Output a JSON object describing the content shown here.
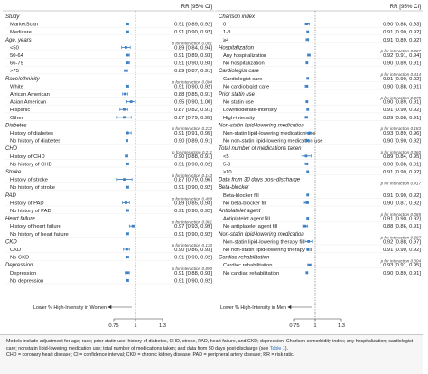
{
  "panels": [
    {
      "header": "RR [95% CI]",
      "x_axis_label": "Lower % High-Intensity in Women",
      "rows": [
        {
          "k": "h",
          "label": "Study"
        },
        {
          "k": "d",
          "label": "MarketScan",
          "rr": "0.91 [0.89, 0.92]",
          "e": 0.91,
          "lo": 0.89,
          "hi": 0.92
        },
        {
          "k": "d",
          "label": "Medicare",
          "rr": "0.91 [0.90, 0.92]",
          "e": 0.91,
          "lo": 0.9,
          "hi": 0.92
        },
        {
          "k": "hp",
          "label": "Age, years",
          "p": "p for interaction 0.001"
        },
        {
          "k": "d",
          "label": "<50",
          "rr": "0.89 [0.84, 0.94]",
          "e": 0.89,
          "lo": 0.84,
          "hi": 0.94
        },
        {
          "k": "d",
          "label": "50-64",
          "rr": "0.91 [0.89, 0.93]",
          "e": 0.91,
          "lo": 0.89,
          "hi": 0.93
        },
        {
          "k": "d",
          "label": "66-75",
          "rr": "0.91 [0.90, 0.93]",
          "e": 0.91,
          "lo": 0.9,
          "hi": 0.93
        },
        {
          "k": "d",
          "label": ">75",
          "rr": "0.89 [0.87, 0.91]",
          "e": 0.89,
          "lo": 0.87,
          "hi": 0.91
        },
        {
          "k": "hp",
          "label": "Race/ethnicity",
          "p": "p for interaction 0.004"
        },
        {
          "k": "d",
          "label": "White",
          "rr": "0.91 [0.90, 0.92]",
          "e": 0.91,
          "lo": 0.9,
          "hi": 0.92
        },
        {
          "k": "d",
          "label": "African American",
          "rr": "0.88 [0.85, 0.91]",
          "e": 0.88,
          "lo": 0.85,
          "hi": 0.91
        },
        {
          "k": "d",
          "label": "Asian American",
          "rr": "0.95 [0.90, 1.00]",
          "e": 0.95,
          "lo": 0.9,
          "hi": 1.0
        },
        {
          "k": "d",
          "label": "Hispanic",
          "rr": "0.87 [0.82, 0.91]",
          "e": 0.87,
          "lo": 0.82,
          "hi": 0.91
        },
        {
          "k": "d",
          "label": "Other",
          "rr": "0.87 [0.79, 0.95]",
          "e": 0.87,
          "lo": 0.79,
          "hi": 0.95
        },
        {
          "k": "hp",
          "label": "Diabetes",
          "p": "p for interaction 0.232"
        },
        {
          "k": "d",
          "label": "History of diabetes",
          "rr": "0.91 [0.91, 0.95]",
          "e": 0.91,
          "lo": 0.91,
          "hi": 0.95
        },
        {
          "k": "d",
          "label": "No history of diabetes",
          "rr": "0.90 [0.89, 0.91]",
          "e": 0.9,
          "lo": 0.89,
          "hi": 0.91
        },
        {
          "k": "hp",
          "label": "CHD",
          "p": "p for interaction 0.211"
        },
        {
          "k": "d",
          "label": "History of CHD",
          "rr": "0.90 [0.88, 0.91]",
          "e": 0.9,
          "lo": 0.88,
          "hi": 0.91
        },
        {
          "k": "d",
          "label": "No history of CHD",
          "rr": "0.91 [0.90, 0.92]",
          "e": 0.91,
          "lo": 0.9,
          "hi": 0.92
        },
        {
          "k": "hp",
          "label": "Stroke",
          "p": "p for interaction 0.143"
        },
        {
          "k": "d",
          "label": "History of stroke",
          "rr": "0.87 [0.79, 0.96]",
          "e": 0.87,
          "lo": 0.79,
          "hi": 0.96
        },
        {
          "k": "d",
          "label": "No history of stroke",
          "rr": "0.91 [0.90, 0.92]",
          "e": 0.91,
          "lo": 0.9,
          "hi": 0.92
        },
        {
          "k": "hp",
          "label": "PAD",
          "p": "p for interaction 0.499"
        },
        {
          "k": "d",
          "label": "History of PAD",
          "rr": "0.89 [0.85, 0.93]",
          "e": 0.89,
          "lo": 0.85,
          "hi": 0.93
        },
        {
          "k": "d",
          "label": "No history of PAD",
          "rr": "0.91 [0.90, 0.92]",
          "e": 0.91,
          "lo": 0.9,
          "hi": 0.92
        },
        {
          "k": "hp",
          "label": "Heart failure",
          "p": "p for interaction 0.981"
        },
        {
          "k": "d",
          "label": "History of heart failure",
          "rr": "0.97 [0.93, 0.99]",
          "e": 0.97,
          "lo": 0.93,
          "hi": 0.99
        },
        {
          "k": "d",
          "label": "No history of heart failure",
          "rr": "0.91 [0.90, 0.92]",
          "e": 0.91,
          "lo": 0.9,
          "hi": 0.92
        },
        {
          "k": "hp",
          "label": "CKD",
          "p": "p for interaction 0.130"
        },
        {
          "k": "d",
          "label": "CKD",
          "rr": "0.90 [0.86, 0.93]",
          "e": 0.9,
          "lo": 0.86,
          "hi": 0.93
        },
        {
          "k": "d",
          "label": "No CKD",
          "rr": "0.91 [0.90, 0.92]",
          "e": 0.91,
          "lo": 0.9,
          "hi": 0.92
        },
        {
          "k": "hp",
          "label": "Depression",
          "p": "p for interaction 0.890"
        },
        {
          "k": "d",
          "label": "Depression",
          "rr": "0.91 [0.88, 0.93]",
          "e": 0.91,
          "lo": 0.88,
          "hi": 0.93
        },
        {
          "k": "d",
          "label": "No depression",
          "rr": "0.91 [0.90, 0.92]",
          "e": 0.91,
          "lo": 0.9,
          "hi": 0.92
        }
      ]
    },
    {
      "header": "RR [95% CI]",
      "x_axis_label": "Lower % High-Intensity in Men",
      "rows": [
        {
          "k": "h",
          "label": "Charlson index"
        },
        {
          "k": "d",
          "label": "0",
          "rr": "0.90 [0.88, 0.93]",
          "e": 0.9,
          "lo": 0.88,
          "hi": 0.93
        },
        {
          "k": "d",
          "label": "1-3",
          "rr": "0.91 [0.90, 0.92]",
          "e": 0.91,
          "lo": 0.9,
          "hi": 0.92
        },
        {
          "k": "d",
          "label": "≥4",
          "rr": "0.91 [0.89, 0.92]",
          "e": 0.91,
          "lo": 0.89,
          "hi": 0.92
        },
        {
          "k": "hp",
          "label": "Hospitalization",
          "p": "p for interaction 0.007"
        },
        {
          "k": "d",
          "label": "Any hospitalization",
          "rr": "0.92 [0.91, 0.94]",
          "e": 0.92,
          "lo": 0.91,
          "hi": 0.94
        },
        {
          "k": "d",
          "label": "No hospitalization",
          "rr": "0.90 [0.89, 0.91]",
          "e": 0.9,
          "lo": 0.89,
          "hi": 0.91
        },
        {
          "k": "hp",
          "label": "Cardiologist care",
          "p": "p for interaction 0.414"
        },
        {
          "k": "d",
          "label": "Cardiologist care",
          "rr": "0.91 [0.90, 0.92]",
          "e": 0.91,
          "lo": 0.9,
          "hi": 0.92
        },
        {
          "k": "d",
          "label": "No cardiologist care",
          "rr": "0.90 [0.88, 0.91]",
          "e": 0.9,
          "lo": 0.88,
          "hi": 0.91
        },
        {
          "k": "hp",
          "label": "Prior statin use",
          "p": "p for interaction 0.079"
        },
        {
          "k": "d",
          "label": "No statin use",
          "rr": "0.90 [0.89, 0.91]",
          "e": 0.9,
          "lo": 0.89,
          "hi": 0.91
        },
        {
          "k": "d",
          "label": "Low/moderate-intensity",
          "rr": "0.91 [0.90, 0.92]",
          "e": 0.91,
          "lo": 0.9,
          "hi": 0.92
        },
        {
          "k": "d",
          "label": "High-intensity",
          "rr": "0.89 [0.88, 0.91]",
          "e": 0.89,
          "lo": 0.88,
          "hi": 0.91
        },
        {
          "k": "hp",
          "label": "Non-statin lipid-lowering medication",
          "p": "p for interaction 0.183"
        },
        {
          "k": "d",
          "label": "Non-statin lipid-lowering medication use",
          "rr": "0.93 [0.89, 0.96]",
          "e": 0.93,
          "lo": 0.89,
          "hi": 0.96
        },
        {
          "k": "d",
          "label": "No non-statin lipid-lowering medication use",
          "rr": "0.90 [0.90, 0.92]",
          "e": 0.9,
          "lo": 0.9,
          "hi": 0.92
        },
        {
          "k": "hp",
          "label": "Total number of medications taken",
          "p": "p for interaction 0.360"
        },
        {
          "k": "d",
          "label": "<5",
          "rr": "0.89 [0.84, 0.95]",
          "e": 0.89,
          "lo": 0.84,
          "hi": 0.95
        },
        {
          "k": "d",
          "label": "5-9",
          "rr": "0.90 [0.88, 0.91]",
          "e": 0.9,
          "lo": 0.88,
          "hi": 0.91
        },
        {
          "k": "d",
          "label": "≥10",
          "rr": "0.91 [0.90, 0.92]",
          "e": 0.91,
          "lo": 0.9,
          "hi": 0.92
        },
        {
          "k": "hp",
          "label": "Data from 30 days post-discharge",
          "p": "p for interaction 0.417"
        },
        {
          "k": "h",
          "label": "Beta-blocker"
        },
        {
          "k": "d",
          "label": "Beta-blocker fill",
          "rr": "0.91 [0.90, 0.92]",
          "e": 0.91,
          "lo": 0.9,
          "hi": 0.92
        },
        {
          "k": "d",
          "label": "No beta-blocker fill",
          "rr": "0.90 [0.87, 0.92]",
          "e": 0.9,
          "lo": 0.87,
          "hi": 0.92
        },
        {
          "k": "hp",
          "label": "Antiplatelet agent",
          "p": "p for interaction 0.085"
        },
        {
          "k": "d",
          "label": "Antiplatelet agent fill",
          "rr": "0.91 [0.90, 0.92]",
          "e": 0.91,
          "lo": 0.9,
          "hi": 0.92
        },
        {
          "k": "d",
          "label": "No antiplatelet agent fill",
          "rr": "0.88 [0.86, 0.91]",
          "e": 0.88,
          "lo": 0.86,
          "hi": 0.91
        },
        {
          "k": "hp",
          "label": "Non-statin lipid-lowering medication",
          "p": "p for interaction 0.387"
        },
        {
          "k": "d",
          "label": "Non-statin lipid-lowering therapy fill",
          "rr": "0.92 [0.88, 0.97]",
          "e": 0.92,
          "lo": 0.88,
          "hi": 0.97
        },
        {
          "k": "d",
          "label": "No non-statin lipid-lowering therapy fill",
          "rr": "0.91 [0.90, 0.92]",
          "e": 0.91,
          "lo": 0.9,
          "hi": 0.92
        },
        {
          "k": "hp",
          "label": "Cardiac rehabilitation",
          "p": "p for interaction 0.004"
        },
        {
          "k": "d",
          "label": "Cardiac rehabilitation",
          "rr": "0.93 [0.91, 0.95]",
          "e": 0.93,
          "lo": 0.91,
          "hi": 0.95
        },
        {
          "k": "d",
          "label": "No cardiac rehabilitation",
          "rr": "0.90 [0.89, 0.91]",
          "e": 0.9,
          "lo": 0.89,
          "hi": 0.91
        }
      ]
    }
  ],
  "chart_data": {
    "type": "scatter",
    "subtype": "forest",
    "xlim": [
      0.75,
      1.3
    ],
    "x_ticks": [
      "0.75",
      "1",
      "1.3"
    ],
    "reference_line": 1,
    "panels": [
      {
        "x_axis_label": "Lower % High-Intensity in Women",
        "rows_ref": "panels.0.rows"
      },
      {
        "x_axis_label": "Lower % High-Intensity in Men",
        "rows_ref": "panels.1.rows"
      }
    ]
  },
  "caption": {
    "line1": "Models include adjustment for age; race; prior statin use; history of diabetes, CHD, stroke, PAD, heart failure, and CKD; depression; Charlson comorbidity index; any hospitalization; cardiologist care; nonstatin lipid-lowering medication use; total number of medications taken; and data from 30 days post-discharge (see ",
    "link": "Table 1",
    "line1_end": ").",
    "line2": "CHD = coronary heart disease; CI = confidence interval; CKD = chronic kidney disease; PAD = peripheral artery disease; RR = risk ratio."
  },
  "colors": {
    "marker": "#3b7fc4",
    "text": "#1a1a1a",
    "italic_header": "#1a1a1a",
    "p_text": "#444444",
    "link": "#2a6db5"
  }
}
